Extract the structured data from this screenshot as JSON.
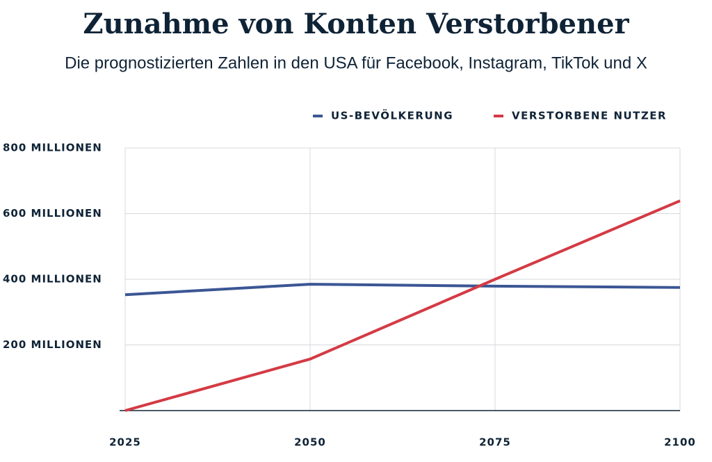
{
  "chart_data": {
    "type": "line",
    "title": "Zunahme von Konten Verstorbener",
    "subtitle": "Die prognostizierten Zahlen in den USA für Facebook, Instagram, TikTok und X",
    "x": [
      2025,
      2050,
      2075,
      2100
    ],
    "xlim": [
      2025,
      2100
    ],
    "xticks": [
      2025,
      2050,
      2075,
      2100
    ],
    "ylim": [
      0,
      800
    ],
    "yticks": [
      {
        "value": 200,
        "label": "200 MILLIONEN"
      },
      {
        "value": 400,
        "label": "400 MILLIONEN"
      },
      {
        "value": 600,
        "label": "600 MILLIONEN"
      },
      {
        "value": 800,
        "label": "800 MILLIONEN"
      }
    ],
    "grid": true,
    "legend": "top-right",
    "series": [
      {
        "name": "US-BEVÖLKERUNG",
        "color": "#3b5694",
        "values": [
          353,
          385,
          379,
          375
        ]
      },
      {
        "name": "VERSTORBENE NUTZER",
        "color": "#d43a44",
        "values": [
          0,
          157,
          400,
          639
        ]
      }
    ]
  }
}
